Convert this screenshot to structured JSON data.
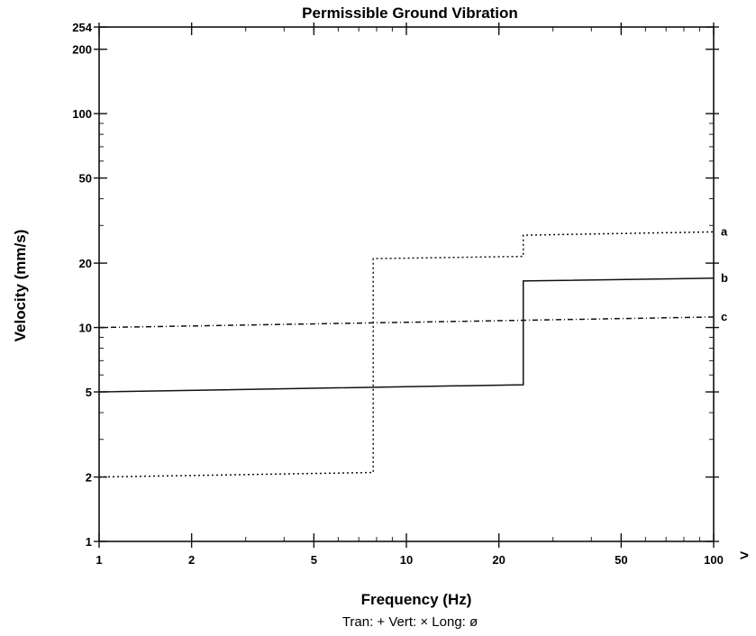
{
  "chart_data": {
    "type": "line",
    "title": "Permissible Ground Vibration",
    "xlabel": "Frequency (Hz)",
    "ylabel": "Velocity (mm/s)",
    "x_scale": "log",
    "y_scale": "log",
    "xlim": [
      1,
      100
    ],
    "ylim": [
      1,
      254
    ],
    "x_ticks": [
      {
        "value": 1,
        "label": "1"
      },
      {
        "value": 2,
        "label": "2"
      },
      {
        "value": 5,
        "label": "5"
      },
      {
        "value": 10,
        "label": "10"
      },
      {
        "value": 20,
        "label": "20"
      },
      {
        "value": 50,
        "label": "50"
      },
      {
        "value": 100,
        "label": "100"
      }
    ],
    "y_ticks": [
      {
        "value": 1,
        "label": "1"
      },
      {
        "value": 2,
        "label": "2"
      },
      {
        "value": 5,
        "label": "5"
      },
      {
        "value": 10,
        "label": "10"
      },
      {
        "value": 20,
        "label": "20"
      },
      {
        "value": 50,
        "label": "50"
      },
      {
        "value": 100,
        "label": "100"
      },
      {
        "value": 200,
        "label": "200"
      },
      {
        "value": 254,
        "label": "254"
      }
    ],
    "x_overflow_marker": ">",
    "legend_text": "Tran: +  Vert: ×  Long: ø",
    "series": [
      {
        "name": "a",
        "style": "dotted",
        "points": [
          [
            1,
            2
          ],
          [
            7.8,
            2.1
          ],
          [
            7.8,
            21
          ],
          [
            24,
            21.5
          ],
          [
            24,
            27
          ],
          [
            100,
            28
          ]
        ]
      },
      {
        "name": "b",
        "style": "solid",
        "points": [
          [
            1,
            5
          ],
          [
            24,
            5.4
          ],
          [
            24,
            16.5
          ],
          [
            100,
            17
          ]
        ]
      },
      {
        "name": "c",
        "style": "dash-dot",
        "points": [
          [
            1,
            10
          ],
          [
            100,
            11.2
          ]
        ]
      }
    ]
  }
}
